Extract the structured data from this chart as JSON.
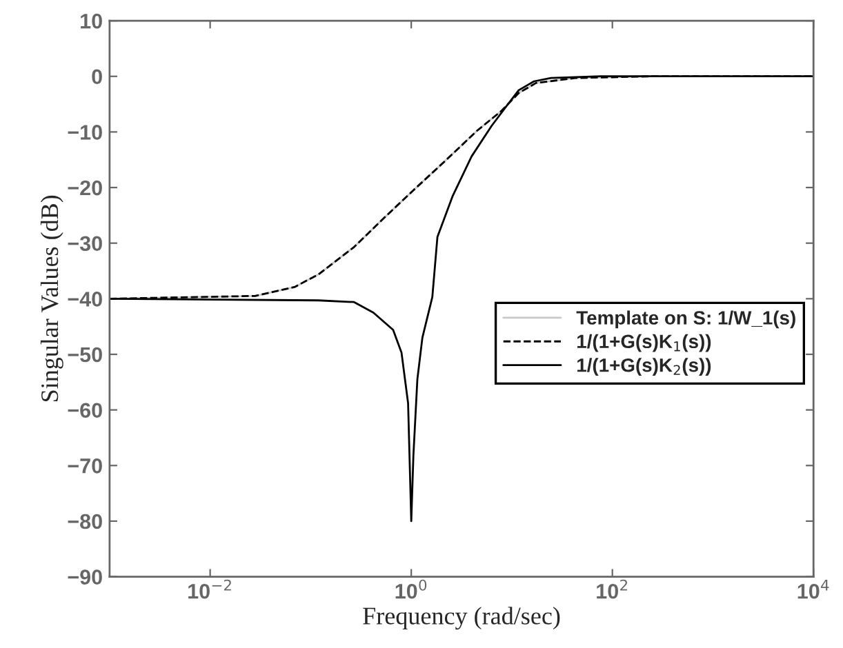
{
  "chart_data": {
    "type": "line",
    "xlabel": "Frequency (rad/sec)",
    "ylabel": "Singular Values (dB)",
    "log": "x",
    "xlim": [
      0.001,
      10000
    ],
    "xticks": [
      {
        "value": 0.01,
        "label": "10$^{−2}$"
      },
      {
        "value": 1,
        "label": "10$^{0}$"
      },
      {
        "value": 100,
        "label": "10$^{2}$"
      },
      {
        "value": 10000,
        "label": "10$^{4}$"
      }
    ],
    "ylim": [
      -90,
      10
    ],
    "yticks": [
      10,
      0,
      -10,
      -20,
      -30,
      -40,
      -50,
      -60,
      -70,
      -80,
      -90
    ],
    "legend": "right",
    "grid": false,
    "series": [
      {
        "name": "Template on S: 1/W_1(s)",
        "color": "#c8c8c8",
        "line_style": "solid",
        "x": [
          0.001,
          0.028,
          0.069,
          0.12,
          0.27,
          0.52,
          1.02,
          2.3,
          4.5,
          7.9,
          11.7,
          17.4,
          43,
          234,
          10000
        ],
        "values": [
          -40,
          -39.5,
          -37.9,
          -35.6,
          -30.7,
          -25.7,
          -20.7,
          -14.8,
          -9.8,
          -6.2,
          -3,
          -1.2,
          -0.3,
          0,
          0
        ]
      },
      {
        "name": "1/(1+G(s)K$_{1}$(s))",
        "color": "#000000",
        "line_style": "dashed",
        "x": [
          0.001,
          0.028,
          0.069,
          0.12,
          0.27,
          0.52,
          1.02,
          2.3,
          4.5,
          7.9,
          11.7,
          17.4,
          43,
          234,
          10000
        ],
        "values": [
          -40,
          -39.5,
          -37.9,
          -35.6,
          -30.7,
          -25.7,
          -20.7,
          -14.8,
          -9.8,
          -6.2,
          -3,
          -1.2,
          -0.3,
          0,
          0
        ]
      },
      {
        "name": "1/(1+G(s)K$_{2}$(s))",
        "color": "#000000",
        "line_style": "solid",
        "x": [
          0.001,
          0.12,
          0.27,
          0.42,
          0.66,
          0.8,
          0.93,
          1,
          1.05,
          1.15,
          1.29,
          1.62,
          1.82,
          2.57,
          3.98,
          6.3,
          8.9,
          11.7,
          16.6,
          24.5,
          76,
          10000
        ],
        "values": [
          -40,
          -40.3,
          -40.6,
          -42.5,
          -45.6,
          -49.7,
          -58.8,
          -80,
          -68.2,
          -54.5,
          -47,
          -39.7,
          -28.9,
          -21.6,
          -14.4,
          -8.9,
          -5.3,
          -2.5,
          -0.9,
          -0.3,
          0,
          0
        ]
      }
    ]
  }
}
